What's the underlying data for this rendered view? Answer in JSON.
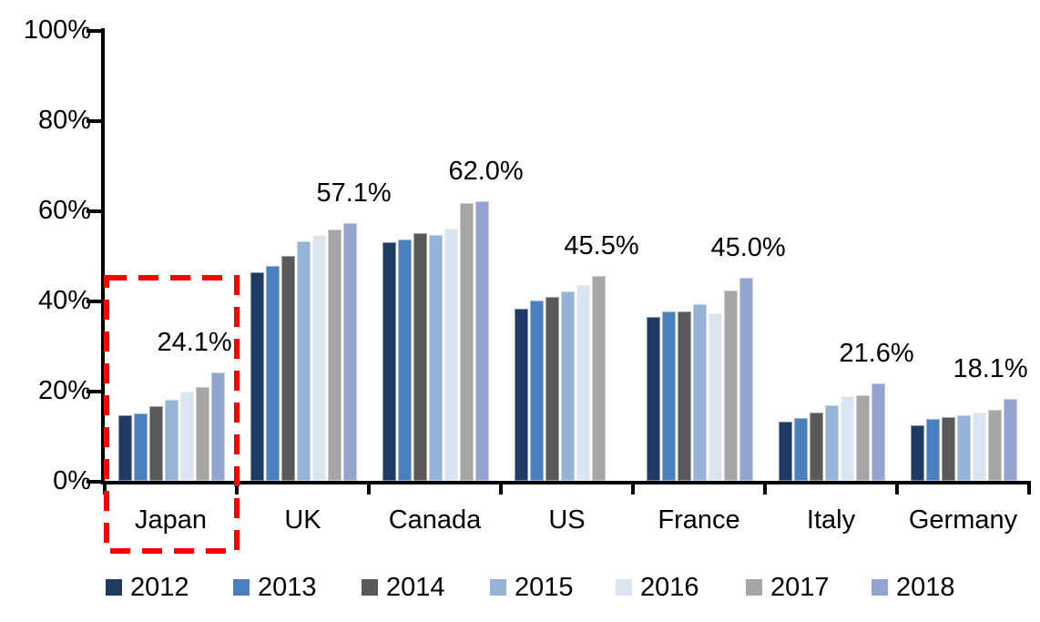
{
  "chart_data": {
    "type": "bar",
    "title": "",
    "xlabel": "",
    "ylabel": "",
    "grid": false,
    "legend_position": "bottom",
    "ylim": [
      0,
      100
    ],
    "categories": [
      "Japan",
      "UK",
      "Canada",
      "US",
      "France",
      "Italy",
      "Germany"
    ],
    "series": [
      {
        "name": "2012",
        "color": "#1F3B63",
        "values": [
          14.5,
          46.2,
          52.9,
          38.2,
          36.4,
          13.2,
          12.3
        ]
      },
      {
        "name": "2013",
        "color": "#4A80BD",
        "values": [
          15.0,
          47.7,
          53.5,
          40.0,
          37.5,
          14.0,
          13.8
        ]
      },
      {
        "name": "2014",
        "color": "#595959",
        "values": [
          16.5,
          49.9,
          54.9,
          40.9,
          37.5,
          15.2,
          14.2
        ]
      },
      {
        "name": "2015",
        "color": "#95B3D7",
        "values": [
          17.9,
          53.2,
          54.5,
          42.0,
          39.1,
          16.7,
          14.6
        ]
      },
      {
        "name": "2016",
        "color": "#DBE5F1",
        "values": [
          19.8,
          54.6,
          56.0,
          43.5,
          37.2,
          18.7,
          15.2
        ]
      },
      {
        "name": "2017",
        "color": "#A6A6A6",
        "values": [
          20.8,
          55.7,
          61.7,
          45.5,
          42.3,
          19.0,
          15.7
        ]
      },
      {
        "name": "2018",
        "color": "#93A4CE",
        "values": [
          24.1,
          57.1,
          62.0,
          null,
          45.0,
          21.6,
          18.1
        ]
      }
    ],
    "y_axis": {
      "ticks": [
        {
          "label": "0%",
          "value": 0
        },
        {
          "label": "20%",
          "value": 20
        },
        {
          "label": "40%",
          "value": 40
        },
        {
          "label": "60%",
          "value": 60
        },
        {
          "label": "80%",
          "value": 80
        },
        {
          "label": "100%",
          "value": 100
        }
      ]
    },
    "data_labels": [
      {
        "category": "Japan",
        "series": "2018",
        "text": "24.1%"
      },
      {
        "category": "UK",
        "series": "2018",
        "text": "57.1%"
      },
      {
        "category": "Canada",
        "series": "2018",
        "text": "62.0%"
      },
      {
        "category": "US",
        "series": "2017",
        "text": "45.5%"
      },
      {
        "category": "France",
        "series": "2018",
        "text": "45.0%"
      },
      {
        "category": "Italy",
        "series": "2018",
        "text": "21.6%"
      },
      {
        "category": "Germany",
        "series": "2018",
        "text": "18.1%"
      }
    ],
    "legend": [
      "2012",
      "2013",
      "2014",
      "2015",
      "2016",
      "2017",
      "2018"
    ],
    "highlight": {
      "shape": "dashed-box",
      "target": "Japan",
      "color": "#FF0000"
    },
    "colors": {
      "axis": "#000000",
      "background": "#FFFFFF"
    }
  }
}
